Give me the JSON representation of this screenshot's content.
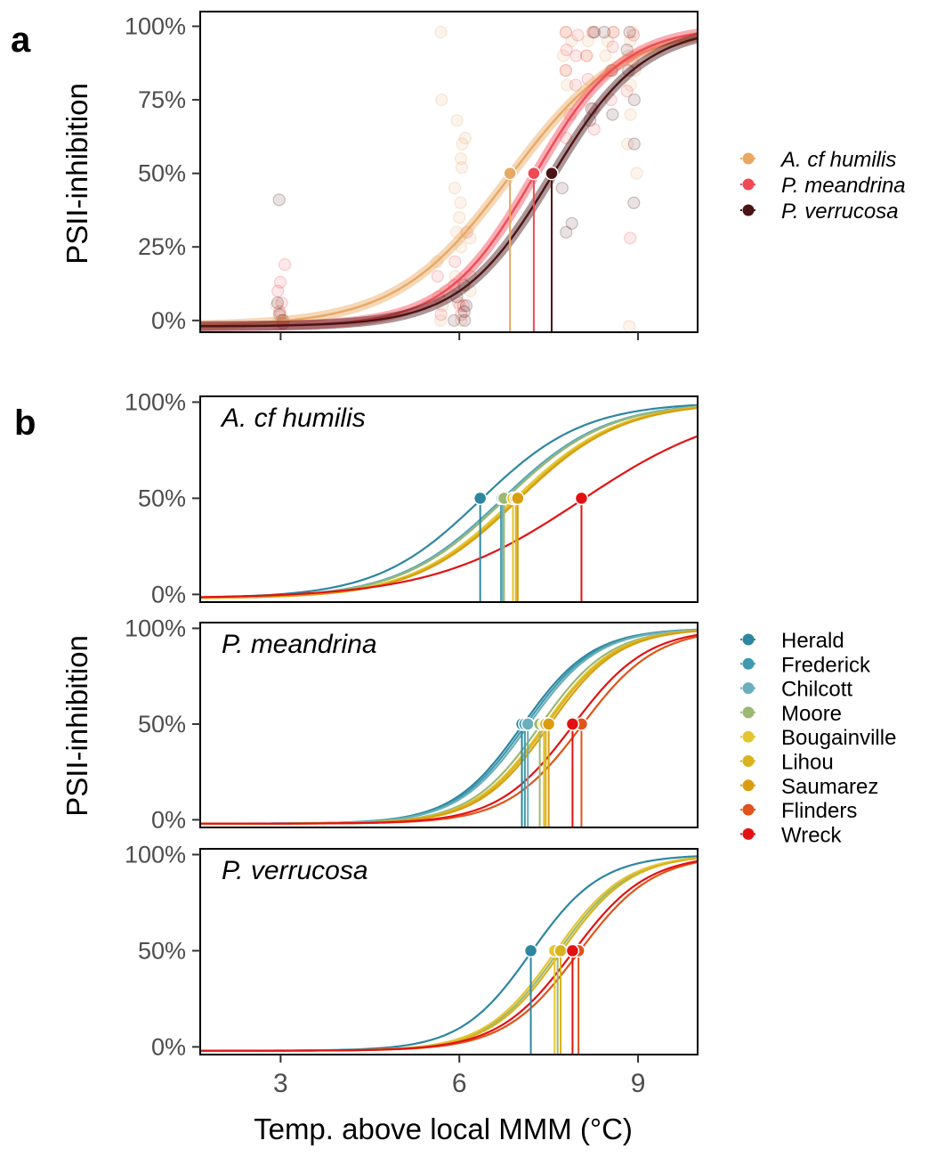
{
  "panel_labels": {
    "a": "a",
    "b": "b"
  },
  "chart_data": [
    {
      "type": "scatter",
      "panel": "a",
      "title": "",
      "xlabel": "",
      "ylabel": "PSII-inhibition",
      "xlim": [
        1.65,
        10.0
      ],
      "ylim": [
        -0.04,
        1.05
      ],
      "xticks": [
        3,
        6,
        9
      ],
      "yticks": [
        0,
        0.25,
        0.5,
        0.75,
        1.0
      ],
      "ytick_labels": [
        "0%",
        "25%",
        "50%",
        "75%",
        "100%"
      ],
      "show_x_tick_labels": false,
      "grid": false,
      "legend_placement": "right",
      "series": [
        {
          "name": "A. cf humilis",
          "color": "#E8A862",
          "ed50": 6.85,
          "slope": 1.05,
          "lower": -0.02,
          "upper": 1.0,
          "points": [
            [
              3.0,
              0.0
            ],
            [
              3.0,
              0.02
            ],
            [
              3.0,
              0.05
            ],
            [
              3.0,
              -0.01
            ],
            [
              5.7,
              0.98
            ],
            [
              5.7,
              0.75
            ],
            [
              5.7,
              0.2
            ],
            [
              5.7,
              0.1
            ],
            [
              5.7,
              0.05
            ],
            [
              5.7,
              0.0
            ],
            [
              6.0,
              0.68
            ],
            [
              6.0,
              0.6
            ],
            [
              6.0,
              0.55
            ],
            [
              6.0,
              0.45
            ],
            [
              6.0,
              0.35
            ],
            [
              6.0,
              0.3
            ],
            [
              6.0,
              0.25
            ],
            [
              6.0,
              0.15
            ],
            [
              6.0,
              0.05
            ],
            [
              6.1,
              0.62
            ],
            [
              6.1,
              0.52
            ],
            [
              6.1,
              0.4
            ],
            [
              6.1,
              0.28
            ],
            [
              6.1,
              0.1
            ],
            [
              6.1,
              0.0
            ],
            [
              7.8,
              0.98
            ],
            [
              7.8,
              0.95
            ],
            [
              7.8,
              0.9
            ],
            [
              7.8,
              0.85
            ],
            [
              7.8,
              0.8
            ],
            [
              8.2,
              0.98
            ],
            [
              8.2,
              0.95
            ],
            [
              8.2,
              0.9
            ],
            [
              8.5,
              0.98
            ],
            [
              8.5,
              0.95
            ],
            [
              8.5,
              0.9
            ],
            [
              8.9,
              0.98
            ],
            [
              8.9,
              0.95
            ],
            [
              8.9,
              0.9
            ],
            [
              8.9,
              0.85
            ],
            [
              8.9,
              0.8
            ],
            [
              8.9,
              0.7
            ],
            [
              8.9,
              0.6
            ],
            [
              8.9,
              0.5
            ],
            [
              8.9,
              -0.02
            ]
          ]
        },
        {
          "name": "P. meandrina",
          "color": "#F04A55",
          "ed50": 7.25,
          "slope": 1.35,
          "lower": -0.02,
          "upper": 1.0,
          "points": [
            [
              3.0,
              0.19
            ],
            [
              3.0,
              0.13
            ],
            [
              3.0,
              0.1
            ],
            [
              3.0,
              0.06
            ],
            [
              3.0,
              0.03
            ],
            [
              3.0,
              0.0
            ],
            [
              3.0,
              -0.01
            ],
            [
              5.7,
              0.15
            ],
            [
              5.7,
              0.08
            ],
            [
              5.7,
              0.02
            ],
            [
              6.0,
              0.2
            ],
            [
              6.0,
              0.12
            ],
            [
              6.0,
              0.06
            ],
            [
              6.0,
              0.02
            ],
            [
              6.1,
              0.3
            ],
            [
              6.1,
              0.15
            ],
            [
              6.1,
              0.05
            ],
            [
              7.8,
              0.98
            ],
            [
              7.8,
              0.92
            ],
            [
              7.8,
              0.85
            ],
            [
              7.8,
              0.7
            ],
            [
              7.8,
              0.62
            ],
            [
              8.0,
              0.97
            ],
            [
              8.0,
              0.9
            ],
            [
              8.0,
              0.8
            ],
            [
              8.2,
              0.98
            ],
            [
              8.2,
              0.9
            ],
            [
              8.2,
              0.82
            ],
            [
              8.2,
              0.72
            ],
            [
              8.2,
              0.65
            ],
            [
              8.5,
              0.98
            ],
            [
              8.5,
              0.93
            ],
            [
              8.5,
              0.85
            ],
            [
              8.5,
              0.75
            ],
            [
              8.9,
              0.97
            ],
            [
              8.9,
              0.88
            ],
            [
              8.9,
              0.78
            ],
            [
              8.9,
              0.28
            ]
          ]
        },
        {
          "name": "P. verrucosa",
          "color": "#4A1416",
          "ed50": 7.55,
          "slope": 1.3,
          "lower": -0.02,
          "upper": 1.0,
          "points": [
            [
              3.0,
              0.41
            ],
            [
              3.0,
              0.06
            ],
            [
              3.0,
              0.02
            ],
            [
              3.0,
              0.0
            ],
            [
              3.0,
              -0.01
            ],
            [
              6.0,
              0.08
            ],
            [
              6.0,
              0.03
            ],
            [
              6.0,
              0.0
            ],
            [
              6.1,
              0.12
            ],
            [
              6.1,
              0.05
            ],
            [
              6.1,
              0.0
            ],
            [
              7.8,
              0.45
            ],
            [
              7.8,
              0.33
            ],
            [
              7.8,
              0.3
            ],
            [
              8.2,
              0.98
            ],
            [
              8.2,
              0.72
            ],
            [
              8.2,
              0.68
            ],
            [
              8.5,
              0.98
            ],
            [
              8.5,
              0.85
            ],
            [
              8.5,
              0.7
            ],
            [
              8.9,
              0.98
            ],
            [
              8.9,
              0.92
            ],
            [
              8.9,
              0.85
            ],
            [
              8.9,
              0.75
            ],
            [
              8.9,
              0.6
            ],
            [
              8.9,
              0.4
            ]
          ]
        }
      ]
    },
    {
      "type": "line",
      "panel": "b",
      "facets": [
        {
          "title": "A. cf humilis",
          "curves": [
            {
              "name": "Herald",
              "ed50": 6.35,
              "slope": 1.15
            },
            {
              "name": "Frederick",
              "ed50": 6.7,
              "slope": 1.15
            },
            {
              "name": "Chilcott",
              "ed50": 6.72,
              "slope": 1.15
            },
            {
              "name": "Moore",
              "ed50": 6.75,
              "slope": 1.15
            },
            {
              "name": "Bougainville",
              "ed50": 6.9,
              "slope": 1.15
            },
            {
              "name": "Lihou",
              "ed50": 6.95,
              "slope": 1.15
            },
            {
              "name": "Saumarez",
              "ed50": 6.98,
              "slope": 1.15
            },
            {
              "name": "Wreck",
              "ed50": 8.05,
              "slope": 0.8
            }
          ]
        },
        {
          "title": "P. meandrina",
          "curves": [
            {
              "name": "Herald",
              "ed50": 7.05,
              "slope": 1.7
            },
            {
              "name": "Frederick",
              "ed50": 7.1,
              "slope": 1.7
            },
            {
              "name": "Chilcott",
              "ed50": 7.15,
              "slope": 1.7
            },
            {
              "name": "Moore",
              "ed50": 7.35,
              "slope": 1.7
            },
            {
              "name": "Bougainville",
              "ed50": 7.42,
              "slope": 1.7
            },
            {
              "name": "Lihou",
              "ed50": 7.45,
              "slope": 1.7
            },
            {
              "name": "Saumarez",
              "ed50": 7.5,
              "slope": 1.7
            },
            {
              "name": "Flinders",
              "ed50": 8.05,
              "slope": 1.6
            },
            {
              "name": "Wreck",
              "ed50": 7.9,
              "slope": 1.6
            }
          ]
        },
        {
          "title": "P. verrucosa",
          "curves": [
            {
              "name": "Herald",
              "ed50": 7.2,
              "slope": 1.7
            },
            {
              "name": "Moore",
              "ed50": 7.65,
              "slope": 1.7
            },
            {
              "name": "Bougainville",
              "ed50": 7.6,
              "slope": 1.7
            },
            {
              "name": "Lihou",
              "ed50": 7.7,
              "slope": 1.7
            },
            {
              "name": "Flinders",
              "ed50": 8.0,
              "slope": 1.6
            },
            {
              "name": "Wreck",
              "ed50": 7.9,
              "slope": 1.6
            }
          ]
        }
      ],
      "xlabel": "Temp. above local MMM (°C)",
      "ylabel": "PSII-inhibition",
      "xlim": [
        1.65,
        10.0
      ],
      "ylim": [
        -0.04,
        1.03
      ],
      "xticks": [
        3,
        6,
        9
      ],
      "xtick_labels": [
        "3",
        "6",
        "9"
      ],
      "yticks": [
        0,
        0.5,
        1.0
      ],
      "ytick_labels": [
        "0%",
        "50%",
        "100%"
      ],
      "grid": false,
      "legend_placement": "right",
      "legend": [
        {
          "name": "Herald",
          "color": "#2E86A0"
        },
        {
          "name": "Frederick",
          "color": "#3E9AAE"
        },
        {
          "name": "Chilcott",
          "color": "#6BAFBC"
        },
        {
          "name": "Moore",
          "color": "#9DB873"
        },
        {
          "name": "Bougainville",
          "color": "#E5C52D"
        },
        {
          "name": "Lihou",
          "color": "#D9B21E"
        },
        {
          "name": "Saumarez",
          "color": "#D89E10"
        },
        {
          "name": "Flinders",
          "color": "#E0531A"
        },
        {
          "name": "Wreck",
          "color": "#E31212"
        }
      ]
    }
  ]
}
